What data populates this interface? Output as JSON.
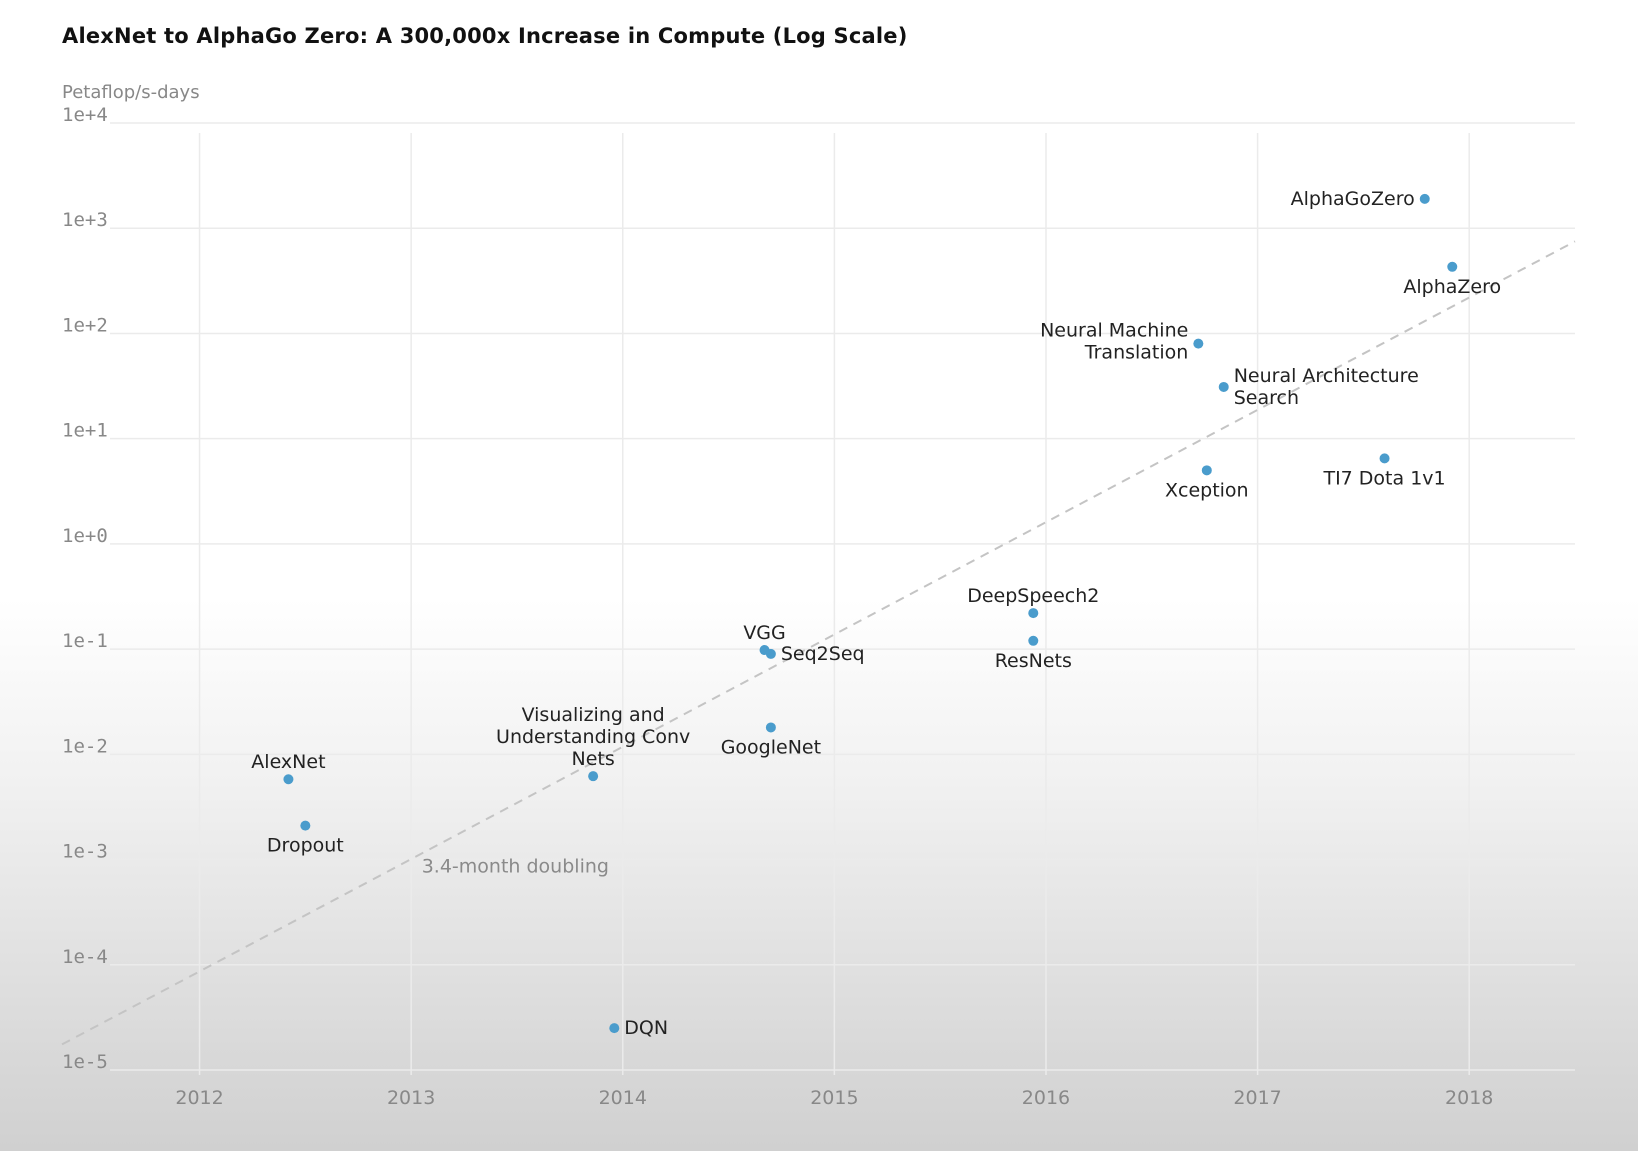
{
  "chart_data": {
    "type": "scatter",
    "title": "AlexNet to AlphaGo Zero: A 300,000x Increase in Compute (Log Scale)",
    "ylabel": "Petaflop/s-days",
    "xlabel": "",
    "y_scale": "log",
    "ylim": [
      1e-05,
      10000.0
    ],
    "xlim": [
      2011.35,
      2018.5
    ],
    "grid": true,
    "y_ticks": [
      "1e-5",
      "1e-4",
      "1e-3",
      "1e-2",
      "1e-1",
      "1e+0",
      "1e+1",
      "1e+2",
      "1e+3",
      "1e+4"
    ],
    "x_ticks": [
      "2012",
      "2013",
      "2014",
      "2015",
      "2016",
      "2017",
      "2018"
    ],
    "points": [
      {
        "name": "AlexNet",
        "x": 2012.42,
        "y": 0.0058,
        "label_lines": [
          "AlexNet"
        ],
        "label_pos": "above"
      },
      {
        "name": "Dropout",
        "x": 2012.5,
        "y": 0.0021,
        "label_lines": [
          "Dropout"
        ],
        "label_pos": "below"
      },
      {
        "name": "Visualizing and Understanding Conv Nets",
        "x": 2013.86,
        "y": 0.0062,
        "label_lines": [
          "Visualizing and",
          "Understanding Conv",
          "Nets"
        ],
        "label_pos": "above"
      },
      {
        "name": "DQN",
        "x": 2013.96,
        "y": 2.5e-05,
        "label_lines": [
          "DQN"
        ],
        "label_pos": "right"
      },
      {
        "name": "VGG",
        "x": 2014.67,
        "y": 0.098,
        "label_lines": [
          "VGG"
        ],
        "label_pos": "above"
      },
      {
        "name": "Seq2Seq",
        "x": 2014.7,
        "y": 0.09,
        "label_lines": [
          "Seq2Seq"
        ],
        "label_pos": "right"
      },
      {
        "name": "GoogleNet",
        "x": 2014.7,
        "y": 0.018,
        "label_lines": [
          "GoogleNet"
        ],
        "label_pos": "below"
      },
      {
        "name": "DeepSpeech2",
        "x": 2015.94,
        "y": 0.22,
        "label_lines": [
          "DeepSpeech2"
        ],
        "label_pos": "above"
      },
      {
        "name": "ResNets",
        "x": 2015.94,
        "y": 0.12,
        "label_lines": [
          "ResNets"
        ],
        "label_pos": "below"
      },
      {
        "name": "Neural Machine Translation",
        "x": 2016.72,
        "y": 80,
        "label_lines": [
          "Neural Machine",
          "Translation"
        ],
        "label_pos": "left"
      },
      {
        "name": "Neural Architecture Search",
        "x": 2016.84,
        "y": 31,
        "label_lines": [
          "Neural Architecture",
          "Search"
        ],
        "label_pos": "right"
      },
      {
        "name": "Xception",
        "x": 2016.76,
        "y": 5,
        "label_lines": [
          "Xception"
        ],
        "label_pos": "below"
      },
      {
        "name": "TI7 Dota 1v1",
        "x": 2017.6,
        "y": 6.5,
        "label_lines": [
          "TI7 Dota 1v1"
        ],
        "label_pos": "below"
      },
      {
        "name": "AlphaGoZero",
        "x": 2017.79,
        "y": 1900,
        "label_lines": [
          "AlphaGoZero"
        ],
        "label_pos": "left"
      },
      {
        "name": "AlphaZero",
        "x": 2017.92,
        "y": 430,
        "label_lines": [
          "AlphaZero"
        ],
        "label_pos": "below"
      }
    ],
    "trend_line": {
      "label": "3.4-month doubling",
      "x": [
        2011.35,
        2018.5
      ],
      "y": [
        1.75e-05,
        750
      ]
    }
  }
}
